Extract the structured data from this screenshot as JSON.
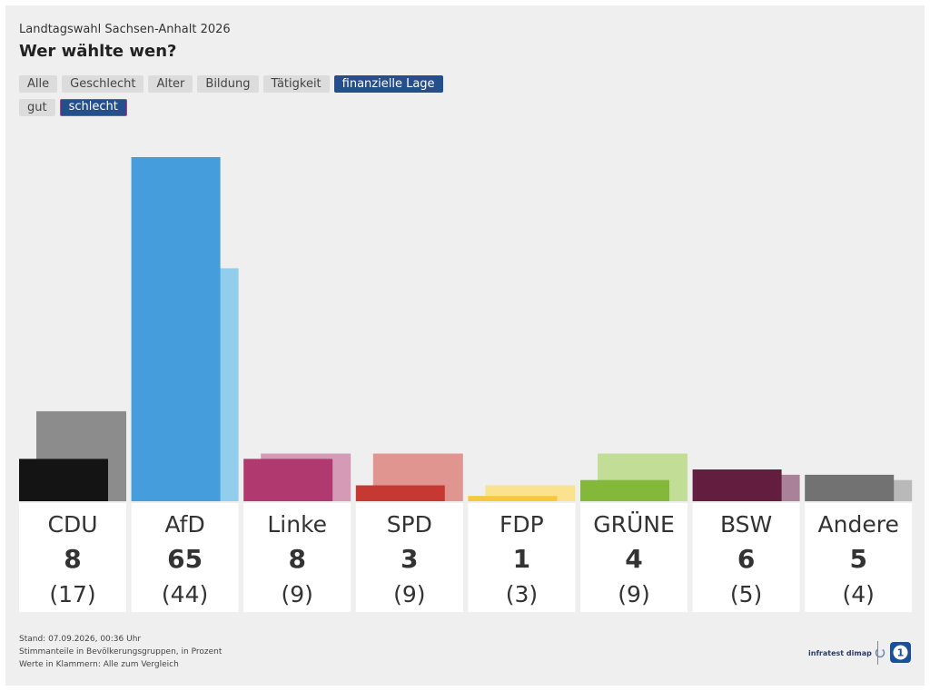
{
  "header": {
    "subtitle": "Landtagswahl Sachsen-Anhalt 2026",
    "title": "Wer wählte wen?"
  },
  "tabs_primary": [
    {
      "label": "Alle",
      "active": false
    },
    {
      "label": "Geschlecht",
      "active": false
    },
    {
      "label": "Alter",
      "active": false
    },
    {
      "label": "Bildung",
      "active": false
    },
    {
      "label": "Tätigkeit",
      "active": false
    },
    {
      "label": "finanzielle Lage",
      "active": true
    }
  ],
  "tabs_secondary": [
    {
      "label": "gut",
      "active": false
    },
    {
      "label": "schlecht",
      "active": true
    }
  ],
  "chart_data": {
    "type": "bar",
    "categories": [
      "CDU",
      "AfD",
      "Linke",
      "SPD",
      "FDP",
      "GRÜNE",
      "BSW",
      "Andere"
    ],
    "series": [
      {
        "values": [
          8,
          65,
          8,
          3,
          1,
          4,
          6,
          5
        ]
      },
      {
        "values": [
          17,
          44,
          9,
          9,
          3,
          9,
          5,
          4
        ]
      }
    ],
    "colors_main": [
      "#141414",
      "#459ddb",
      "#b03a6f",
      "#c63832",
      "#f7c73e",
      "#83b83b",
      "#631d3f",
      "#727272"
    ],
    "colors_compare": [
      "#8c8c8c",
      "#93cdec",
      "#d59ab5",
      "#e19590",
      "#fbe28f",
      "#c1dd96",
      "#a98198",
      "#b9b9b9"
    ],
    "compare_labels": [
      "(17)",
      "(44)",
      "(9)",
      "(9)",
      "(3)",
      "(9)",
      "(5)",
      "(4)"
    ],
    "ylim": [
      0,
      65
    ]
  },
  "footer": {
    "line1": "Stand: 07.09.2026, 00:36 Uhr",
    "line2": "Stimmanteile in Bevölkerungsgruppen, in Prozent",
    "line3": "Werte in Klammern: Alle zum Vergleich"
  },
  "logos": {
    "infratest": "infratest dimap"
  }
}
